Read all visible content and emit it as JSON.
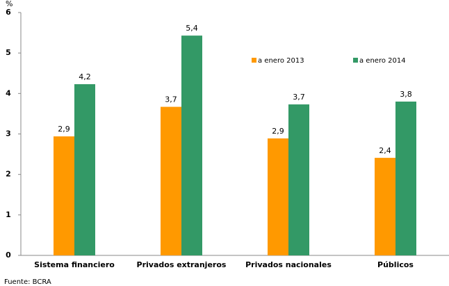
{
  "chart_data": {
    "type": "bar",
    "y_label": "%",
    "categories": [
      "Sistema financiero",
      "Privados extranjeros",
      "Privados nacionales",
      "Públicos"
    ],
    "series": [
      {
        "name": "a enero 2013",
        "color": "#ff9900",
        "values": [
          2.94,
          3.67,
          2.89,
          2.41
        ],
        "value_labels": [
          "2,9",
          "3,7",
          "2,9",
          "2,4"
        ]
      },
      {
        "name": "a enero 2014",
        "color": "#339966",
        "values": [
          4.23,
          5.43,
          3.73,
          3.8
        ],
        "value_labels": [
          "4,2",
          "5,4",
          "3,7",
          "3,8"
        ]
      }
    ],
    "ylim": [
      0,
      6
    ],
    "yticks": [
      0,
      1,
      2,
      3,
      4,
      5,
      6
    ],
    "grid": false,
    "source": "Fuente: BCRA"
  }
}
